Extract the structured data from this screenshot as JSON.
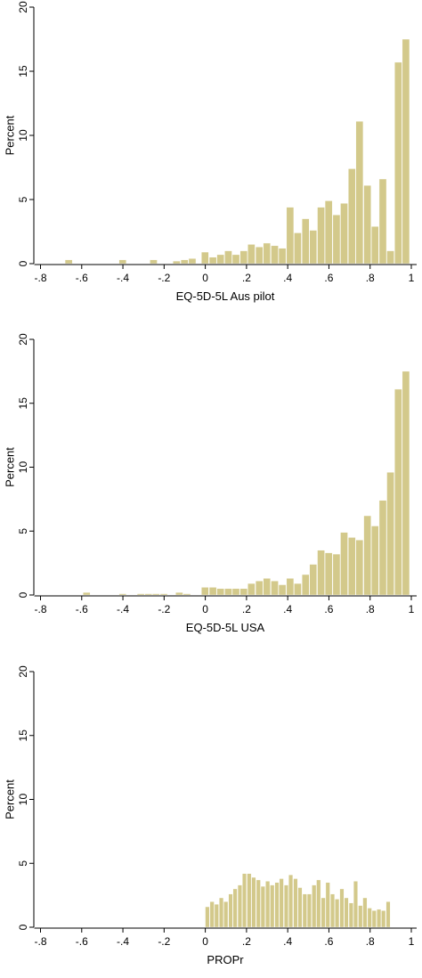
{
  "chart_data": [
    {
      "type": "bar",
      "xlabel": "EQ-5D-5L Aus pilot",
      "ylabel": "Percent",
      "xlim": [
        -0.8,
        1.0
      ],
      "ylim": [
        0,
        20
      ],
      "xticks": [
        "-.8",
        "-.6",
        "-.4",
        "-.2",
        "0",
        ".2",
        ".4",
        ".6",
        ".8",
        "1"
      ],
      "yticks": [
        "0",
        "5",
        "10",
        "15",
        "20"
      ],
      "bar_color": "#d3c98b",
      "bin_width": 0.0375,
      "x": [
        -0.662,
        -0.4,
        -0.25,
        -0.138,
        -0.1,
        -0.062,
        0.0,
        0.038,
        0.075,
        0.113,
        0.15,
        0.188,
        0.225,
        0.263,
        0.3,
        0.338,
        0.375,
        0.413,
        0.45,
        0.488,
        0.525,
        0.563,
        0.6,
        0.638,
        0.675,
        0.713,
        0.75,
        0.788,
        0.825,
        0.863,
        0.9,
        0.938,
        0.975
      ],
      "values": [
        0.3,
        0.3,
        0.3,
        0.2,
        0.3,
        0.4,
        0.9,
        0.5,
        0.7,
        1.0,
        0.7,
        1.0,
        1.5,
        1.3,
        1.6,
        1.4,
        1.2,
        4.4,
        2.4,
        3.5,
        2.6,
        4.4,
        4.9,
        3.8,
        4.7,
        7.4,
        11.1,
        6.1,
        2.9,
        6.6,
        1.0,
        15.7,
        17.5
      ]
    },
    {
      "type": "bar",
      "xlabel": "EQ-5D-5L USA",
      "ylabel": "Percent",
      "xlim": [
        -0.8,
        1.0
      ],
      "ylim": [
        0,
        20
      ],
      "xticks": [
        "-.8",
        "-.6",
        "-.4",
        "-.2",
        "0",
        ".2",
        ".4",
        ".6",
        ".8",
        "1"
      ],
      "yticks": [
        "0",
        "5",
        "10",
        "15",
        "20"
      ],
      "bar_color": "#d3c98b",
      "bin_width": 0.0375,
      "x": [
        -0.575,
        -0.4,
        -0.312,
        -0.275,
        -0.238,
        -0.2,
        -0.125,
        -0.088,
        0.0,
        0.038,
        0.075,
        0.113,
        0.15,
        0.188,
        0.225,
        0.263,
        0.3,
        0.338,
        0.375,
        0.413,
        0.45,
        0.488,
        0.525,
        0.563,
        0.6,
        0.638,
        0.675,
        0.713,
        0.75,
        0.788,
        0.825,
        0.863,
        0.9,
        0.938,
        0.975
      ],
      "values": [
        0.2,
        0.1,
        0.1,
        0.1,
        0.1,
        0.1,
        0.2,
        0.1,
        0.6,
        0.6,
        0.5,
        0.5,
        0.5,
        0.5,
        0.9,
        1.1,
        1.3,
        1.1,
        0.8,
        1.3,
        0.9,
        1.6,
        2.4,
        3.5,
        3.3,
        3.2,
        4.9,
        4.5,
        4.3,
        6.2,
        5.4,
        7.4,
        9.6,
        16.1,
        17.5
      ]
    },
    {
      "type": "bar",
      "xlabel": "PROPr",
      "ylabel": "Percent",
      "xlim": [
        -0.8,
        1.0
      ],
      "ylim": [
        0,
        20
      ],
      "xticks": [
        "-.8",
        "-.6",
        "-.4",
        "-.2",
        "0",
        ".2",
        ".4",
        ".6",
        ".8",
        "1"
      ],
      "yticks": [
        "0",
        "5",
        "10",
        "15",
        "20"
      ],
      "bar_color": "#d3c98b",
      "bin_width": 0.0225,
      "x": [
        0.011,
        0.034,
        0.056,
        0.079,
        0.101,
        0.124,
        0.146,
        0.169,
        0.191,
        0.214,
        0.236,
        0.259,
        0.281,
        0.304,
        0.326,
        0.349,
        0.371,
        0.394,
        0.416,
        0.439,
        0.461,
        0.484,
        0.506,
        0.529,
        0.551,
        0.574,
        0.596,
        0.619,
        0.641,
        0.664,
        0.686,
        0.709,
        0.731,
        0.754,
        0.776,
        0.799,
        0.821,
        0.844,
        0.866,
        0.889
      ],
      "values": [
        1.6,
        2.0,
        1.8,
        2.3,
        2.0,
        2.6,
        3.0,
        3.3,
        4.2,
        4.2,
        3.9,
        3.7,
        3.2,
        3.6,
        3.3,
        3.5,
        3.8,
        3.3,
        4.1,
        3.8,
        3.1,
        2.6,
        2.6,
        3.3,
        3.7,
        2.3,
        3.5,
        2.6,
        2.2,
        3.0,
        2.3,
        1.9,
        3.6,
        1.7,
        2.3,
        1.5,
        1.3,
        1.4,
        1.3,
        2.0
      ]
    }
  ]
}
